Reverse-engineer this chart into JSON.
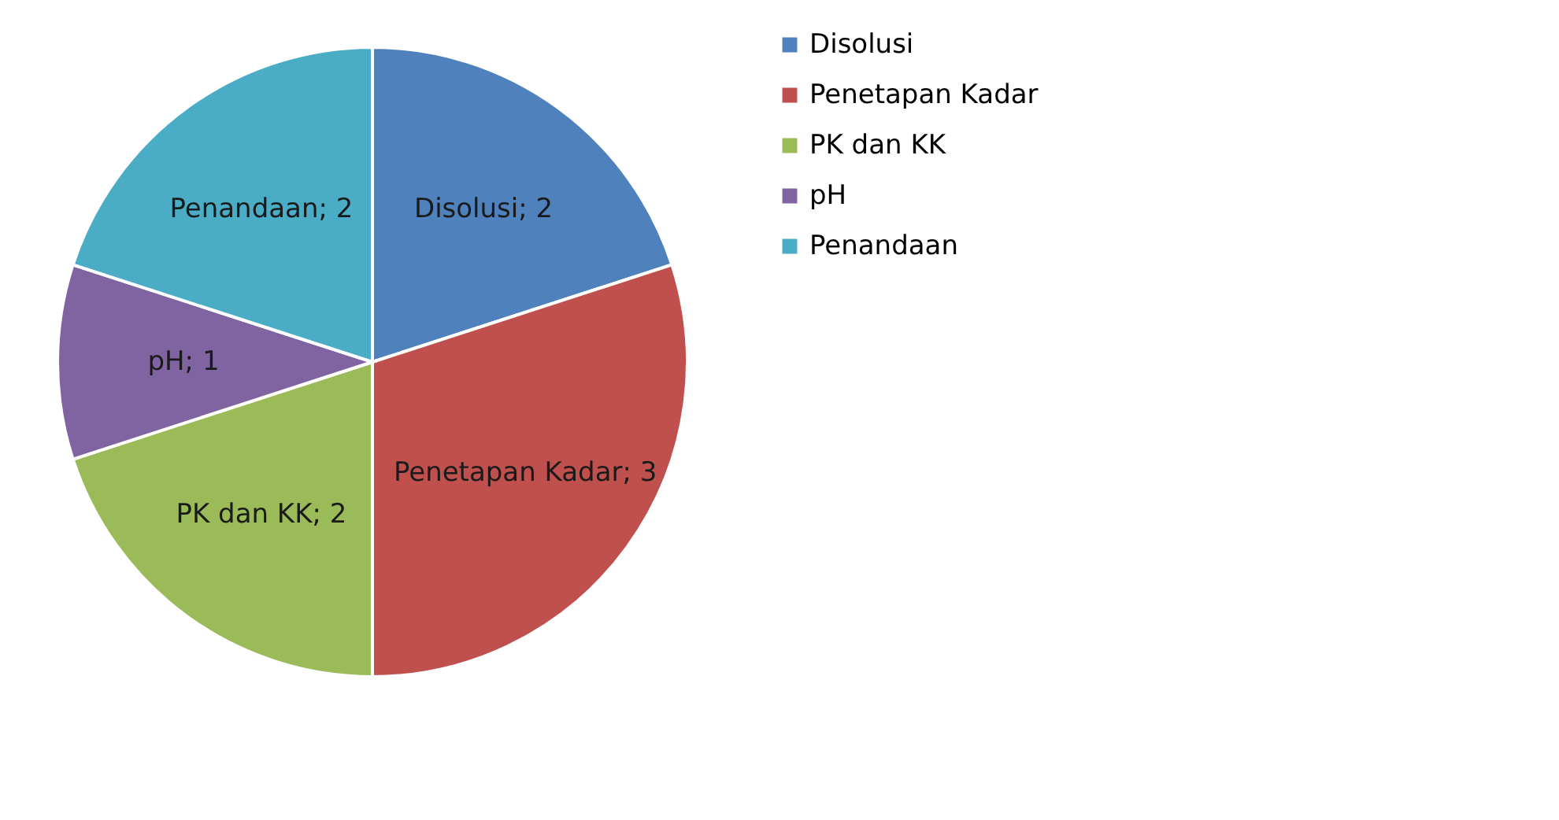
{
  "chart_data": {
    "type": "pie",
    "categories": [
      "Disolusi",
      "Penetapan Kadar",
      "PK dan KK",
      "pH",
      "Penandaan"
    ],
    "values": [
      2,
      3,
      2,
      1,
      2
    ],
    "colors": [
      "#4f81bd",
      "#c0504d",
      "#9bbb59",
      "#8064a2",
      "#4bacc6"
    ],
    "value_labels": [
      "Disolusi; 2",
      "Penetapan Kadar; 3",
      "PK dan KK; 2",
      "pH; 1",
      "Penandaan; 2"
    ],
    "legend": "right"
  }
}
